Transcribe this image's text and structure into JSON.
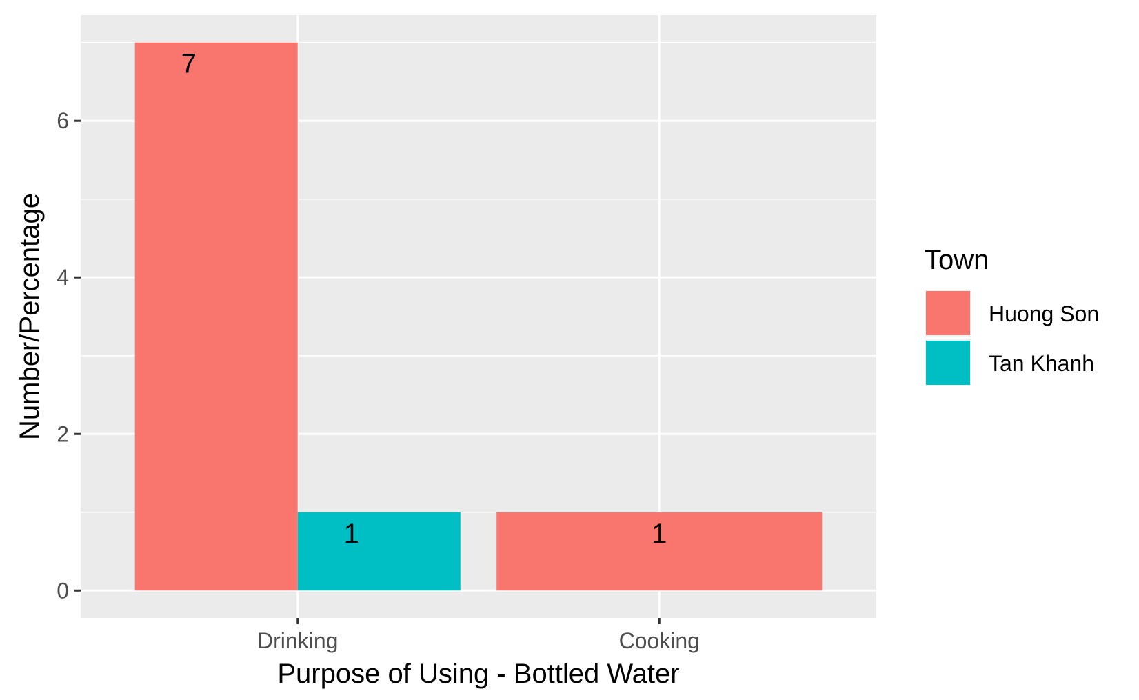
{
  "chart_data": {
    "type": "bar",
    "categories": [
      "Drinking",
      "Cooking"
    ],
    "series": [
      {
        "name": "Huong Son",
        "values": [
          7,
          1
        ]
      },
      {
        "name": "Tan Khanh",
        "values": [
          1,
          null
        ]
      }
    ],
    "data_labels": [
      {
        "series": "Huong Son",
        "category": "Drinking",
        "text": "7"
      },
      {
        "series": "Tan Khanh",
        "category": "Drinking",
        "text": "1"
      },
      {
        "series": "Huong Son",
        "category": "Cooking",
        "text": "1"
      }
    ],
    "xlabel": "Purpose of Using - Bottled Water",
    "ylabel": "Number/Percentage",
    "ylim": [
      -0.35,
      7.35
    ],
    "yticks": [
      0,
      2,
      4,
      6
    ],
    "grid": true,
    "legend": {
      "title": "Town",
      "placement": "right"
    },
    "colors": {
      "Huong Son": "#F8766D",
      "Tan Khanh": "#00BFC4"
    },
    "panel_background": "#EBEBEB"
  }
}
